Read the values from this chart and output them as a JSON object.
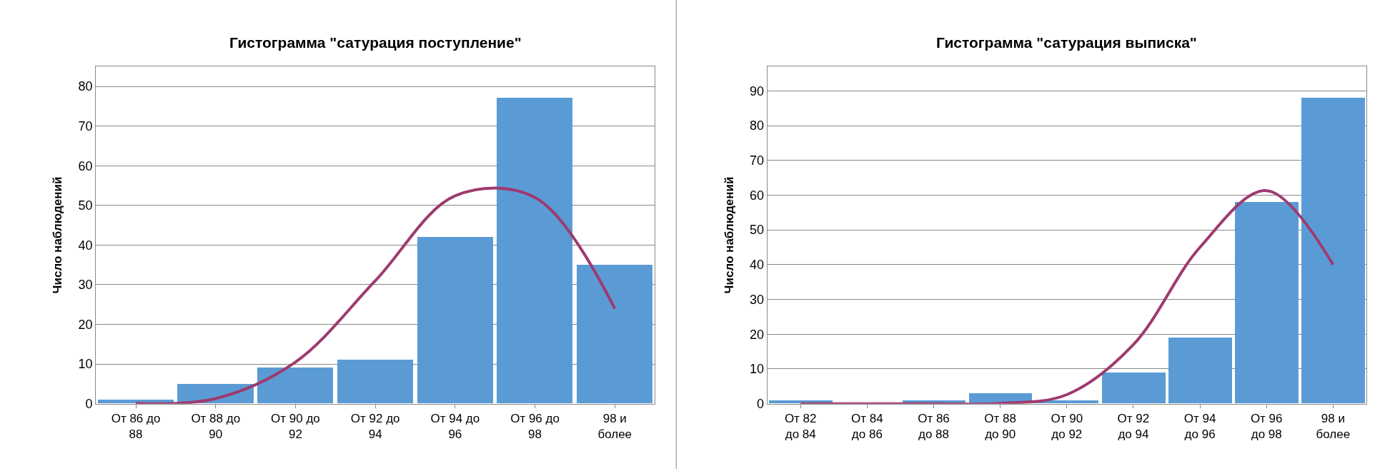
{
  "chart_data": [
    {
      "type": "bar",
      "title": "Гистограмма \"сатурация поступление\"",
      "ylabel": "Число наблюдений",
      "categories": [
        "От 86 до 88",
        "От 88 до 90",
        "От 90 до 92",
        "От 92 до 94",
        "От 94 до 96",
        "От 96 до 98",
        "98 и более"
      ],
      "series": [
        {
          "color": "#5b9bd5",
          "values": [
            1,
            5,
            9,
            11,
            42,
            77,
            35
          ]
        },
        {
          "type": "line",
          "color": "#9e3a6e",
          "values": [
            0.1,
            1.3,
            10.5,
            31,
            52.4,
            52,
            24
          ]
        }
      ],
      "ylim": [
        0,
        85
      ],
      "yticks": [
        0,
        10,
        20,
        30,
        40,
        50,
        60,
        70,
        80
      ],
      "grid": "y"
    },
    {
      "type": "bar",
      "title": "Гистограмма \"сатурация выписка\"",
      "ylabel": "Число наблюдений",
      "categories": [
        "От 82 до 84",
        "От 84 до 86",
        "От 86 до 88",
        "От 88 до 90",
        "От 90 до 92",
        "От 92 до 94",
        "От 94 до 96",
        "От 96 до 98",
        "98 и более"
      ],
      "series": [
        {
          "color": "#5b9bd5",
          "values": [
            1,
            0,
            1,
            3,
            1,
            9,
            19,
            58,
            88
          ]
        },
        {
          "type": "line",
          "color": "#9e3a6e",
          "values": [
            0,
            0,
            0,
            0.1,
            2.6,
            17,
            45,
            61.3,
            40
          ]
        }
      ],
      "ylim": [
        0,
        97
      ],
      "yticks": [
        0,
        10,
        20,
        30,
        40,
        50,
        60,
        70,
        80,
        90
      ],
      "grid": "y"
    }
  ]
}
